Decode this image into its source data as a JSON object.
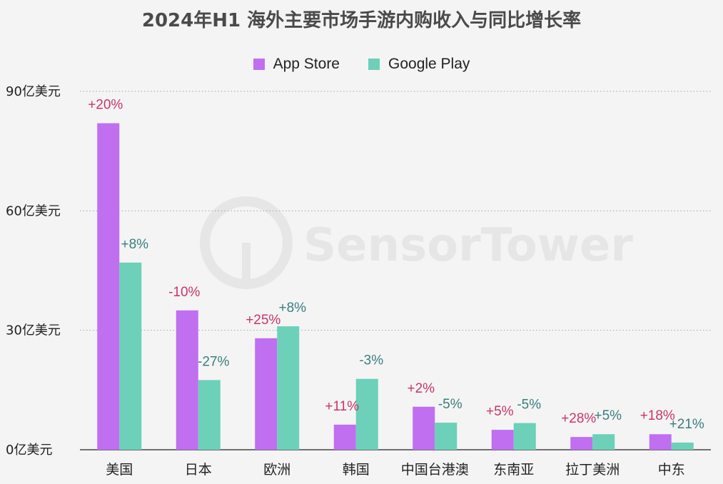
{
  "chart_data": {
    "type": "bar",
    "title": "2024年H1 海外主要市场手游内购收入与同比增长率",
    "categories": [
      "美国",
      "日本",
      "欧洲",
      "韩国",
      "中国台港澳",
      "东南亚",
      "拉丁美洲",
      "中东"
    ],
    "y_ticks": [
      "0亿美元",
      "30亿美元",
      "60亿美元",
      "90亿美元"
    ],
    "ylim": [
      0,
      90
    ],
    "grid": true,
    "legend_position": "top-center",
    "series": [
      {
        "name": "App Store",
        "color": "#bf6ff0",
        "label_color": "#c8356a",
        "values": [
          82,
          35,
          28,
          6.3,
          10.8,
          5,
          3.2,
          3.9
        ],
        "growth": [
          "+20%",
          "-10%",
          "+25%",
          "+11%",
          "+2%",
          "+5%",
          "+28%",
          "+18%"
        ]
      },
      {
        "name": "Google Play",
        "color": "#6dd0b9",
        "label_color": "#3b7d7e",
        "values": [
          47,
          17.5,
          31,
          17.8,
          6.8,
          6.7,
          3.9,
          1.8
        ],
        "growth": [
          "+8%",
          "-27%",
          "+8%",
          "-3%",
          "-5%",
          "-5%",
          "+5%",
          "+21%"
        ]
      }
    ]
  },
  "watermark": "SensorTower"
}
